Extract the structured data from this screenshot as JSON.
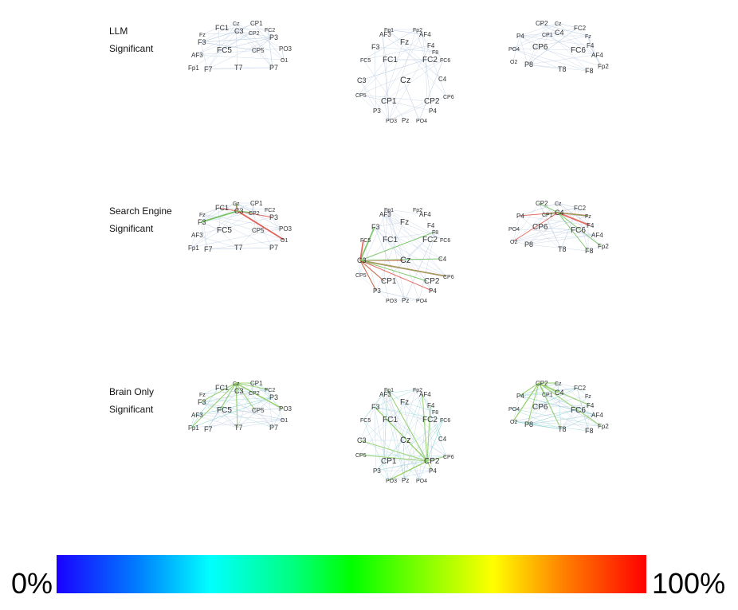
{
  "rows": [
    {
      "id": "llm",
      "line1": "LLM",
      "line2": "Significant"
    },
    {
      "id": "search",
      "line1": "Search Engine",
      "line2": "Significant"
    },
    {
      "id": "brain",
      "line1": "Brain Only",
      "line2": "Significant"
    }
  ],
  "left_view_labels": [
    "FC1",
    "Cz",
    "CP1",
    "FC2",
    "C3",
    "CP2",
    "Fz",
    "P3",
    "F3",
    "FC5",
    "CP5",
    "PO3",
    "AF3",
    "O1",
    "Fp1",
    "F7",
    "T7",
    "P7"
  ],
  "top_view_labels": [
    "Fp1",
    "Fp2",
    "AF3",
    "AF4",
    "Fz",
    "F3",
    "F4",
    "F8",
    "FC5",
    "FC1",
    "FC2",
    "FC6",
    "C3",
    "Cz",
    "C4",
    "CP5",
    "CP1",
    "CP2",
    "CP6",
    "P3",
    "P4",
    "PO3",
    "Pz",
    "PO4"
  ],
  "right_view_labels": [
    "CP2",
    "Cz",
    "FC2",
    "P4",
    "CP1",
    "C4",
    "Fz",
    "PO4",
    "CP6",
    "FC6",
    "F4",
    "O2",
    "P8",
    "T8",
    "F8",
    "AF4",
    "Fp2"
  ],
  "colors": {
    "low_link": "#b9cbe0",
    "search_red": "#e0554a",
    "search_green": "#6fbf5a",
    "brain_green": "#8fce63",
    "brain_cyan": "#7fd6d0"
  },
  "colorbar": {
    "min_label": "0%",
    "max_label": "100%"
  }
}
